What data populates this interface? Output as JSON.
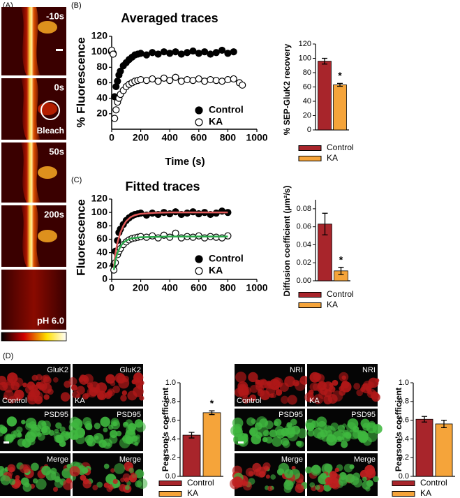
{
  "panel_a": {
    "label": "(A)",
    "frames": [
      "-10s",
      "0s",
      "50s",
      "200s",
      "pH 6.0"
    ],
    "bleach": "Bleach"
  },
  "panel_b_label": "(B)",
  "panel_c_label": "(C)",
  "panel_d": {
    "label": "(D)",
    "left": {
      "top": [
        "GluK2",
        "GluK2"
      ],
      "conditions": [
        "Control",
        "KA"
      ],
      "middle": [
        "PSD95",
        "PSD95"
      ],
      "bottom": [
        "Merge",
        "Merge"
      ]
    },
    "right": {
      "top": [
        "NRI",
        "NRI"
      ],
      "conditions": [
        "Control",
        "KA"
      ],
      "middle": [
        "PSD95",
        "PSD95"
      ],
      "bottom": [
        "Merge",
        "Merge"
      ]
    }
  },
  "chart_data": [
    {
      "type": "scatter",
      "title": "Averaged traces",
      "x_label": "Time (s)",
      "y_label": "% Fluorescence",
      "xlim": [
        0,
        1000
      ],
      "xticks": [
        0,
        200,
        400,
        600,
        800,
        1000
      ],
      "ylim": [
        0,
        120
      ],
      "yticks": [
        20,
        40,
        60,
        80,
        100,
        120
      ],
      "x": [
        0,
        10,
        20,
        30,
        40,
        50,
        60,
        80,
        100,
        120,
        140,
        160,
        180,
        200,
        240,
        280,
        320,
        360,
        400,
        440,
        480,
        520,
        560,
        600,
        640,
        680,
        720,
        760,
        800,
        840,
        880,
        900
      ],
      "series": [
        {
          "name": "Control",
          "color": "#000000",
          "values": [
            100,
            98,
            42,
            55,
            62,
            70,
            75,
            82,
            86,
            90,
            93,
            96,
            97,
            98,
            96,
            99,
            97,
            100,
            98,
            100,
            97,
            99,
            101,
            98,
            100,
            97,
            99,
            102,
            98,
            100,
            null,
            null
          ]
        },
        {
          "name": "KA",
          "color": "#ffffff",
          "values": [
            102,
            97,
            14,
            25,
            35,
            40,
            45,
            50,
            55,
            58,
            60,
            62,
            63,
            64,
            63,
            65,
            62,
            66,
            63,
            67,
            62,
            64,
            63,
            65,
            62,
            64,
            63,
            62,
            64,
            65,
            60,
            57
          ]
        }
      ]
    },
    {
      "type": "bar",
      "y_label": "% SEP-GluK2 recovery",
      "categories": [
        "Control",
        "KA"
      ],
      "values": [
        96,
        63
      ],
      "errors": [
        4,
        2
      ],
      "colors": [
        "#a8252b",
        "#f5a43a"
      ],
      "ylim": [
        0,
        120
      ],
      "yticks": [
        0,
        20,
        40,
        60,
        80,
        100,
        120
      ],
      "annotation": "*"
    },
    {
      "type": "scatter",
      "title": "Fitted traces",
      "y_label": "Fluorescence",
      "xlim": [
        0,
        1000
      ],
      "xticks": [
        0,
        200,
        400,
        600,
        800,
        1000
      ],
      "ylim": [
        0,
        120
      ],
      "yticks": [
        0,
        20,
        40,
        60,
        80,
        100,
        120
      ],
      "x": [
        15,
        25,
        40,
        50,
        60,
        80,
        100,
        120,
        140,
        160,
        180,
        200,
        240,
        280,
        320,
        360,
        400,
        440,
        480,
        520,
        560,
        600,
        640,
        680,
        720,
        760,
        800
      ],
      "series": [
        {
          "name": "Control",
          "color": "#000000",
          "values": [
            22,
            42,
            58,
            70,
            75,
            82,
            88,
            92,
            95,
            97,
            98,
            99,
            96,
            99,
            97,
            100,
            98,
            101,
            97,
            99,
            101,
            98,
            100,
            97,
            99,
            102,
            100
          ]
        },
        {
          "name": "KA",
          "color": "#ffffff",
          "values": [
            14,
            25,
            37,
            42,
            46,
            52,
            56,
            59,
            61,
            62,
            63,
            64,
            63,
            65,
            62,
            66,
            63,
            69,
            62,
            64,
            63,
            65,
            62,
            64,
            63,
            62,
            65
          ]
        }
      ],
      "fits": [
        {
          "color": "#e05a5a",
          "x": [
            15,
            25,
            40,
            60,
            80,
            100,
            130,
            160,
            200,
            300,
            400,
            500,
            600,
            700,
            800
          ],
          "values": [
            18,
            38,
            55,
            70,
            80,
            87,
            93,
            96,
            98,
            99.5,
            100,
            100,
            100,
            100,
            100
          ]
        },
        {
          "color": "#2aa84a",
          "x": [
            15,
            25,
            40,
            60,
            80,
            100,
            130,
            160,
            200,
            300,
            400,
            500,
            600,
            700,
            800
          ],
          "values": [
            14,
            28,
            40,
            49,
            55,
            58,
            61,
            62,
            63,
            63.5,
            64,
            64,
            64,
            64,
            64
          ]
        }
      ]
    },
    {
      "type": "bar",
      "y_label": "Diffusion coefficient (μm²/s)",
      "categories": [
        "Control",
        "KA"
      ],
      "values": [
        0.063,
        0.011
      ],
      "errors": [
        0.012,
        0.004
      ],
      "colors": [
        "#a8252b",
        "#f5a43a"
      ],
      "ylim": [
        0,
        0.09
      ],
      "yticks": [
        {
          "value": 0,
          "label": "0.00"
        },
        {
          "value": 0.02,
          "label": "0.02"
        },
        {
          "value": 0.04,
          "label": "0.04"
        },
        {
          "value": 0.06,
          "label": "0.06"
        },
        {
          "value": 0.08,
          "label": "0.08"
        }
      ],
      "annotation": "*"
    },
    {
      "type": "bar",
      "y_label": "Pearson's coefficient",
      "categories": [
        "Control",
        "KA"
      ],
      "values": [
        0.44,
        0.68
      ],
      "errors": [
        0.03,
        0.02
      ],
      "colors": [
        "#a8252b",
        "#f5a43a"
      ],
      "ylim": [
        0,
        1
      ],
      "yticks": [
        {
          "value": 0,
          "label": "0.0"
        },
        {
          "value": 0.2,
          "label": "0.2"
        },
        {
          "value": 0.4,
          "label": "0.4"
        },
        {
          "value": 0.6,
          "label": "0.6"
        },
        {
          "value": 0.8,
          "label": "0.8"
        },
        {
          "value": 1,
          "label": "1.0"
        }
      ],
      "annotation": "*"
    },
    {
      "type": "bar",
      "y_label": "Pearson's coefficient",
      "categories": [
        "Control",
        "KA"
      ],
      "values": [
        0.61,
        0.56
      ],
      "errors": [
        0.03,
        0.04
      ],
      "colors": [
        "#a8252b",
        "#f5a43a"
      ],
      "ylim": [
        0,
        1
      ],
      "yticks": [
        {
          "value": 0,
          "label": "0.0"
        },
        {
          "value": 0.2,
          "label": "0.2"
        },
        {
          "value": 0.4,
          "label": "0.4"
        },
        {
          "value": 0.6,
          "label": "0.6"
        },
        {
          "value": 0.8,
          "label": "0.8"
        },
        {
          "value": 1,
          "label": "1.0"
        }
      ]
    }
  ]
}
